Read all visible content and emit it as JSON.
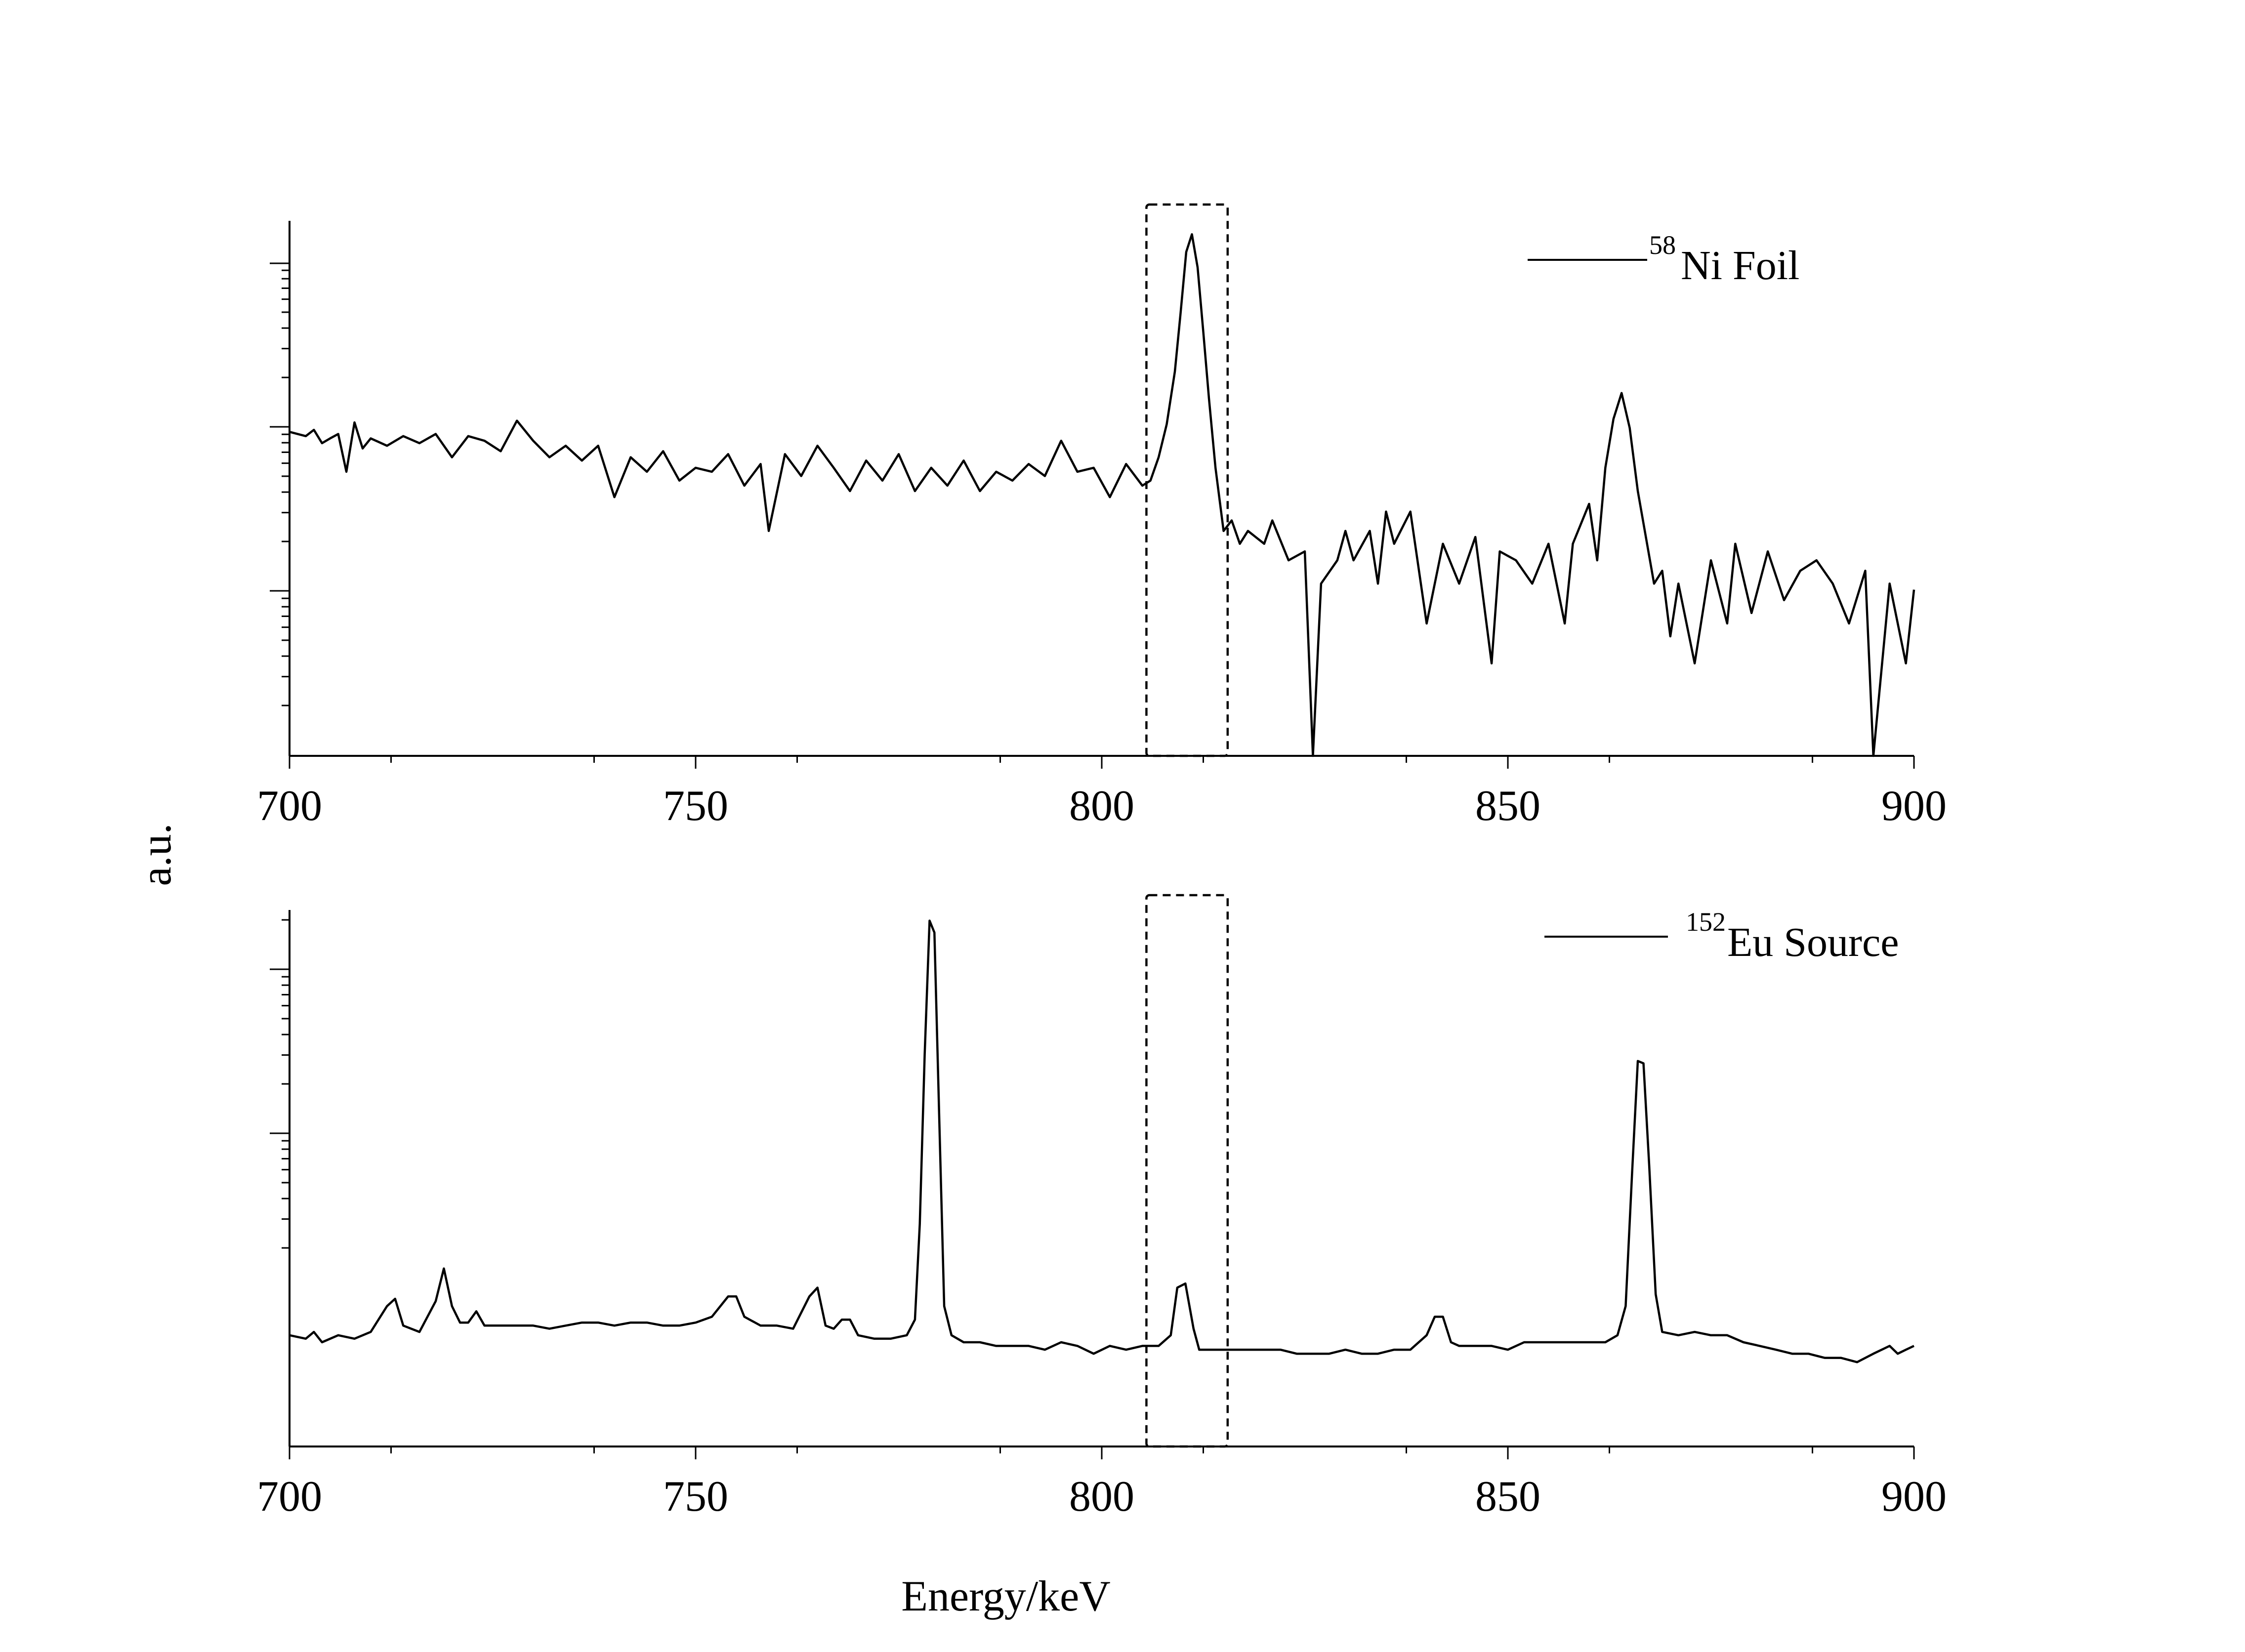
{
  "figure": {
    "ylabel": "a.u.",
    "xlabel": "Energy/keV"
  },
  "chart_data": [
    {
      "type": "line",
      "x_range": [
        700,
        900
      ],
      "x_ticks": [
        "700",
        "750",
        "800",
        "850",
        "900"
      ],
      "y_scale": "log",
      "highlight_window_keV": [
        805.5,
        815.5
      ],
      "legend": {
        "isotope_mass": "58",
        "label": "Ni Foil",
        "placement": "top-right"
      },
      "series": [
        {
          "name": "58Ni Foil",
          "points": [
            [
              700,
              0.28
            ],
            [
              702,
              0.26
            ],
            [
              703,
              0.29
            ],
            [
              704,
              0.23
            ],
            [
              705,
              0.25
            ],
            [
              706,
              0.27
            ],
            [
              707,
              0.14
            ],
            [
              708,
              0.33
            ],
            [
              709,
              0.21
            ],
            [
              710,
              0.25
            ],
            [
              712,
              0.22
            ],
            [
              714,
              0.26
            ],
            [
              716,
              0.23
            ],
            [
              718,
              0.27
            ],
            [
              720,
              0.18
            ],
            [
              722,
              0.26
            ],
            [
              724,
              0.24
            ],
            [
              726,
              0.2
            ],
            [
              728,
              0.34
            ],
            [
              730,
              0.24
            ],
            [
              732,
              0.18
            ],
            [
              734,
              0.22
            ],
            [
              736,
              0.17
            ],
            [
              738,
              0.22
            ],
            [
              740,
              0.09
            ],
            [
              742,
              0.18
            ],
            [
              744,
              0.14
            ],
            [
              746,
              0.2
            ],
            [
              748,
              0.12
            ],
            [
              750,
              0.15
            ],
            [
              752,
              0.14
            ],
            [
              754,
              0.19
            ],
            [
              756,
              0.11
            ],
            [
              758,
              0.16
            ],
            [
              759,
              0.05
            ],
            [
              761,
              0.19
            ],
            [
              763,
              0.13
            ],
            [
              765,
              0.22
            ],
            [
              767,
              0.15
            ],
            [
              769,
              0.1
            ],
            [
              771,
              0.17
            ],
            [
              773,
              0.12
            ],
            [
              775,
              0.19
            ],
            [
              777,
              0.1
            ],
            [
              779,
              0.15
            ],
            [
              781,
              0.11
            ],
            [
              783,
              0.17
            ],
            [
              785,
              0.1
            ],
            [
              787,
              0.14
            ],
            [
              789,
              0.12
            ],
            [
              791,
              0.16
            ],
            [
              793,
              0.13
            ],
            [
              795,
              0.24
            ],
            [
              797,
              0.14
            ],
            [
              799,
              0.15
            ],
            [
              801,
              0.09
            ],
            [
              803,
              0.16
            ],
            [
              805,
              0.11
            ],
            [
              806,
              0.12
            ],
            [
              807,
              0.18
            ],
            [
              808,
              0.32
            ],
            [
              809,
              0.8
            ],
            [
              809.7,
              2.2
            ],
            [
              810.4,
              6.4
            ],
            [
              811.1,
              8.7
            ],
            [
              811.8,
              4.9
            ],
            [
              812.5,
              1.6
            ],
            [
              813.2,
              0.5
            ],
            [
              814,
              0.15
            ],
            [
              815,
              0.05
            ],
            [
              816,
              0.06
            ],
            [
              817,
              0.04
            ],
            [
              818,
              0.05
            ],
            [
              820,
              0.04
            ],
            [
              821,
              0.06
            ],
            [
              823,
              0.03
            ],
            [
              825,
              0.035
            ],
            [
              826,
              0.001
            ],
            [
              827,
              0.02
            ],
            [
              829,
              0.03
            ],
            [
              830,
              0.05
            ],
            [
              831,
              0.03
            ],
            [
              833,
              0.05
            ],
            [
              834,
              0.02
            ],
            [
              835,
              0.07
            ],
            [
              836,
              0.04
            ],
            [
              838,
              0.07
            ],
            [
              840,
              0.01
            ],
            [
              842,
              0.04
            ],
            [
              844,
              0.02
            ],
            [
              846,
              0.045
            ],
            [
              848,
              0.005
            ],
            [
              849,
              0.035
            ],
            [
              851,
              0.03
            ],
            [
              853,
              0.02
            ],
            [
              855,
              0.04
            ],
            [
              857,
              0.01
            ],
            [
              858,
              0.04
            ],
            [
              860,
              0.08
            ],
            [
              861,
              0.03
            ],
            [
              862,
              0.15
            ],
            [
              863,
              0.35
            ],
            [
              864,
              0.55
            ],
            [
              865,
              0.3
            ],
            [
              866,
              0.1
            ],
            [
              868,
              0.02
            ],
            [
              869,
              0.025
            ],
            [
              870,
              0.008
            ],
            [
              871,
              0.02
            ],
            [
              873,
              0.005
            ],
            [
              875,
              0.03
            ],
            [
              877,
              0.01
            ],
            [
              878,
              0.04
            ],
            [
              880,
              0.012
            ],
            [
              882,
              0.035
            ],
            [
              884,
              0.015
            ],
            [
              886,
              0.025
            ],
            [
              888,
              0.03
            ],
            [
              890,
              0.02
            ],
            [
              892,
              0.01
            ],
            [
              894,
              0.025
            ],
            [
              895,
              0.001
            ],
            [
              897,
              0.02
            ],
            [
              899,
              0.005
            ],
            [
              900,
              0.018
            ]
          ]
        }
      ]
    },
    {
      "type": "line",
      "x_range": [
        700,
        900
      ],
      "x_ticks": [
        "700",
        "750",
        "800",
        "850",
        "900"
      ],
      "y_scale": "log",
      "highlight_window_keV": [
        805.5,
        815.5
      ],
      "legend": {
        "isotope_mass": "152",
        "label": "Eu Source",
        "placement": "top-right"
      },
      "series": [
        {
          "name": "152Eu Source",
          "points": [
            [
              700,
              0.3
            ],
            [
              702,
              0.29
            ],
            [
              703,
              0.31
            ],
            [
              704,
              0.28
            ],
            [
              706,
              0.3
            ],
            [
              708,
              0.29
            ],
            [
              710,
              0.31
            ],
            [
              712,
              0.4
            ],
            [
              713,
              0.43
            ],
            [
              714,
              0.33
            ],
            [
              716,
              0.31
            ],
            [
              718,
              0.42
            ],
            [
              719,
              0.58
            ],
            [
              720,
              0.4
            ],
            [
              721,
              0.34
            ],
            [
              722,
              0.34
            ],
            [
              723,
              0.38
            ],
            [
              724,
              0.33
            ],
            [
              726,
              0.33
            ],
            [
              728,
              0.33
            ],
            [
              730,
              0.33
            ],
            [
              732,
              0.32
            ],
            [
              734,
              0.33
            ],
            [
              736,
              0.34
            ],
            [
              738,
              0.34
            ],
            [
              740,
              0.33
            ],
            [
              742,
              0.34
            ],
            [
              744,
              0.34
            ],
            [
              746,
              0.33
            ],
            [
              748,
              0.33
            ],
            [
              750,
              0.34
            ],
            [
              752,
              0.36
            ],
            [
              754,
              0.44
            ],
            [
              755,
              0.44
            ],
            [
              756,
              0.36
            ],
            [
              758,
              0.33
            ],
            [
              760,
              0.33
            ],
            [
              762,
              0.32
            ],
            [
              764,
              0.44
            ],
            [
              765,
              0.48
            ],
            [
              766,
              0.33
            ],
            [
              767,
              0.32
            ],
            [
              768,
              0.35
            ],
            [
              769,
              0.35
            ],
            [
              770,
              0.3
            ],
            [
              772,
              0.29
            ],
            [
              774,
              0.29
            ],
            [
              776,
              0.3
            ],
            [
              777,
              0.35
            ],
            [
              777.6,
              0.9
            ],
            [
              778.2,
              4.8
            ],
            [
              778.8,
              18.0
            ],
            [
              779.4,
              16.0
            ],
            [
              780,
              2.5
            ],
            [
              780.6,
              0.4
            ],
            [
              781.5,
              0.3
            ],
            [
              783,
              0.28
            ],
            [
              785,
              0.28
            ],
            [
              787,
              0.27
            ],
            [
              789,
              0.27
            ],
            [
              791,
              0.27
            ],
            [
              793,
              0.26
            ],
            [
              795,
              0.28
            ],
            [
              797,
              0.27
            ],
            [
              799,
              0.25
            ],
            [
              801,
              0.27
            ],
            [
              803,
              0.26
            ],
            [
              805,
              0.27
            ],
            [
              807,
              0.27
            ],
            [
              808.5,
              0.3
            ],
            [
              809.3,
              0.48
            ],
            [
              810.3,
              0.5
            ],
            [
              811.3,
              0.32
            ],
            [
              812,
              0.26
            ],
            [
              814,
              0.26
            ],
            [
              816,
              0.26
            ],
            [
              818,
              0.26
            ],
            [
              820,
              0.26
            ],
            [
              822,
              0.26
            ],
            [
              824,
              0.25
            ],
            [
              826,
              0.25
            ],
            [
              828,
              0.25
            ],
            [
              830,
              0.26
            ],
            [
              832,
              0.25
            ],
            [
              834,
              0.25
            ],
            [
              836,
              0.26
            ],
            [
              838,
              0.26
            ],
            [
              840,
              0.3
            ],
            [
              841,
              0.36
            ],
            [
              842,
              0.36
            ],
            [
              843,
              0.28
            ],
            [
              844,
              0.27
            ],
            [
              846,
              0.27
            ],
            [
              848,
              0.27
            ],
            [
              850,
              0.26
            ],
            [
              852,
              0.28
            ],
            [
              854,
              0.28
            ],
            [
              856,
              0.28
            ],
            [
              858,
              0.28
            ],
            [
              860,
              0.28
            ],
            [
              862,
              0.28
            ],
            [
              863.5,
              0.3
            ],
            [
              864.5,
              0.4
            ],
            [
              865.3,
              1.5
            ],
            [
              866,
              4.5
            ],
            [
              866.7,
              4.4
            ],
            [
              867.4,
              1.6
            ],
            [
              868.2,
              0.45
            ],
            [
              869,
              0.31
            ],
            [
              871,
              0.3
            ],
            [
              873,
              0.31
            ],
            [
              875,
              0.3
            ],
            [
              877,
              0.3
            ],
            [
              879,
              0.28
            ],
            [
              881,
              0.27
            ],
            [
              883,
              0.26
            ],
            [
              885,
              0.25
            ],
            [
              887,
              0.25
            ],
            [
              889,
              0.24
            ],
            [
              891,
              0.24
            ],
            [
              893,
              0.23
            ],
            [
              895,
              0.25
            ],
            [
              897,
              0.27
            ],
            [
              898,
              0.25
            ],
            [
              899,
              0.26
            ],
            [
              900,
              0.27
            ]
          ]
        }
      ]
    }
  ]
}
